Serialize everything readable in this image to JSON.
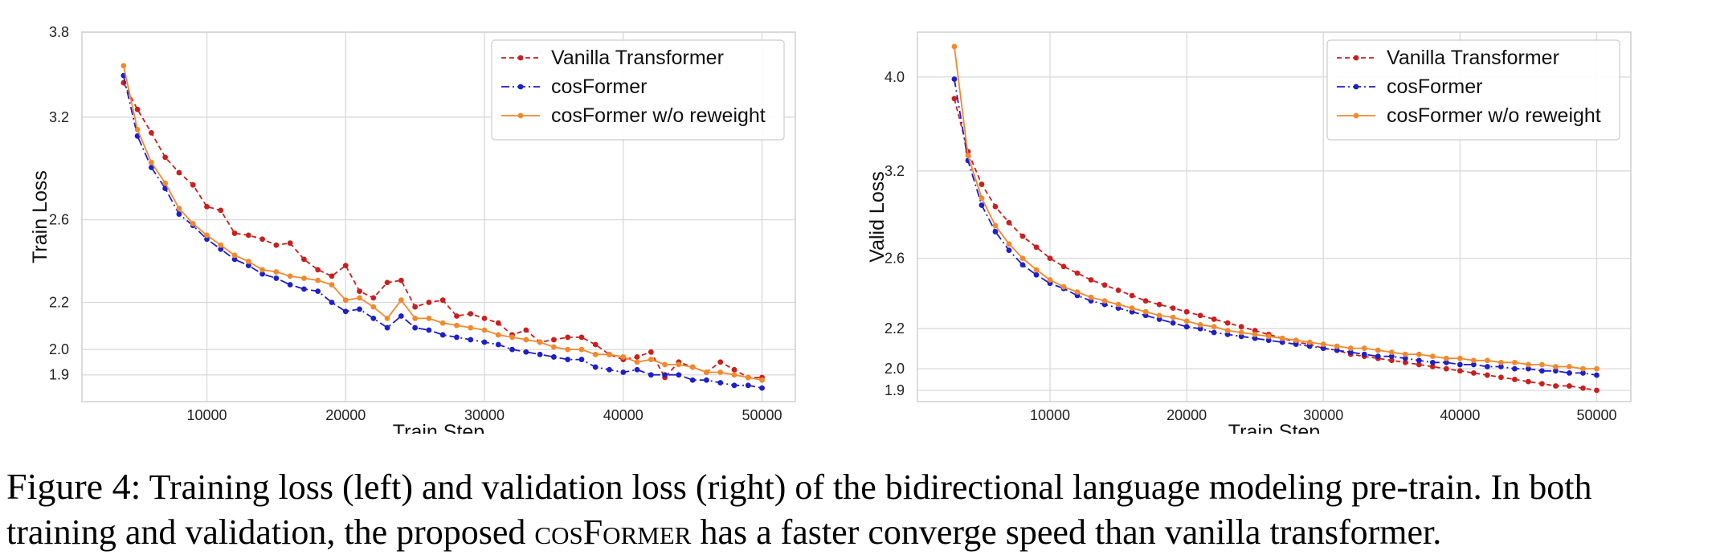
{
  "caption": {
    "label": "Figure 4:",
    "text_a": "Training loss (left) and validation loss (right) of the bidirectional language modeling pre-train. In both training and validation, the proposed ",
    "model": "cosFormer",
    "text_b": " has a faster converge speed than vanilla transformer."
  },
  "colors": {
    "vanilla": "#c8201f",
    "cosformer": "#1f1fc8",
    "reweight": "#f18a2e",
    "grid": "#d9d9d9"
  },
  "chart_data": [
    {
      "type": "line",
      "xlabel": "Train Step",
      "ylabel": "Train Loss",
      "xlim": [
        1000,
        52400
      ],
      "ylim": [
        1.8,
        3.8
      ],
      "y_scale": "log",
      "xticks": [
        10000,
        20000,
        30000,
        40000,
        50000
      ],
      "yticks": [
        1.9,
        2.0,
        2.2,
        2.6,
        3.2,
        3.8
      ],
      "grid": true,
      "legend_position": "top-right",
      "x": [
        4000,
        5000,
        6000,
        7000,
        8000,
        9000,
        10000,
        11000,
        12000,
        13000,
        14000,
        15000,
        16000,
        17000,
        18000,
        19000,
        20000,
        21000,
        22000,
        23000,
        24000,
        25000,
        26000,
        27000,
        28000,
        29000,
        30000,
        31000,
        32000,
        33000,
        34000,
        35000,
        36000,
        37000,
        38000,
        39000,
        40000,
        41000,
        42000,
        43000,
        44000,
        45000,
        46000,
        47000,
        48000,
        49000,
        50000
      ],
      "series": [
        {
          "name": "Vanilla Transformer",
          "color": "#c8201f",
          "style": "dashed",
          "values": [
            3.43,
            3.25,
            3.1,
            2.95,
            2.86,
            2.79,
            2.67,
            2.65,
            2.53,
            2.52,
            2.5,
            2.47,
            2.48,
            2.4,
            2.35,
            2.32,
            2.37,
            2.25,
            2.22,
            2.29,
            2.3,
            2.18,
            2.2,
            2.21,
            2.14,
            2.15,
            2.13,
            2.11,
            2.06,
            2.08,
            2.03,
            2.04,
            2.05,
            2.05,
            2.02,
            1.98,
            1.96,
            1.97,
            1.99,
            1.89,
            1.95,
            1.93,
            1.91,
            1.95,
            1.92,
            1.89,
            1.89
          ]
        },
        {
          "name": "cosFormer",
          "color": "#1f1fc8",
          "style": "dashdot",
          "values": [
            3.48,
            3.08,
            2.89,
            2.77,
            2.63,
            2.57,
            2.5,
            2.45,
            2.4,
            2.37,
            2.33,
            2.31,
            2.28,
            2.26,
            2.25,
            2.2,
            2.16,
            2.17,
            2.13,
            2.09,
            2.14,
            2.09,
            2.08,
            2.06,
            2.05,
            2.04,
            2.03,
            2.02,
            2.0,
            1.99,
            1.98,
            1.97,
            1.96,
            1.96,
            1.93,
            1.92,
            1.91,
            1.92,
            1.9,
            1.9,
            1.9,
            1.88,
            1.88,
            1.87,
            1.86,
            1.86,
            1.85
          ]
        },
        {
          "name": "cosFormer w/o reweight",
          "color": "#f18a2e",
          "style": "solid",
          "values": [
            3.55,
            3.12,
            2.92,
            2.8,
            2.66,
            2.58,
            2.52,
            2.47,
            2.42,
            2.39,
            2.35,
            2.34,
            2.32,
            2.31,
            2.3,
            2.28,
            2.21,
            2.22,
            2.18,
            2.13,
            2.21,
            2.13,
            2.13,
            2.11,
            2.1,
            2.09,
            2.08,
            2.06,
            2.05,
            2.04,
            2.03,
            2.01,
            2.0,
            2.0,
            1.98,
            1.98,
            1.97,
            1.95,
            1.96,
            1.94,
            1.94,
            1.93,
            1.91,
            1.91,
            1.9,
            1.89,
            1.88
          ]
        }
      ]
    },
    {
      "type": "line",
      "xlabel": "Train Step",
      "ylabel": "Valid Loss",
      "xlim": [
        300,
        52500
      ],
      "ylim": [
        1.85,
        4.45
      ],
      "y_scale": "log",
      "xticks": [
        10000,
        20000,
        30000,
        40000,
        50000
      ],
      "yticks": [
        1.9,
        2.0,
        2.2,
        2.6,
        3.2,
        4.0
      ],
      "grid": true,
      "legend_position": "top-right",
      "x": [
        3000,
        4000,
        5000,
        6000,
        7000,
        8000,
        9000,
        10000,
        11000,
        12000,
        13000,
        14000,
        15000,
        16000,
        17000,
        18000,
        19000,
        20000,
        21000,
        22000,
        23000,
        24000,
        25000,
        26000,
        27000,
        28000,
        29000,
        30000,
        31000,
        32000,
        33000,
        34000,
        35000,
        36000,
        37000,
        38000,
        39000,
        40000,
        41000,
        42000,
        43000,
        44000,
        45000,
        46000,
        47000,
        48000,
        49000,
        50000
      ],
      "series": [
        {
          "name": "Vanilla Transformer",
          "color": "#c8201f",
          "style": "dashed",
          "values": [
            3.8,
            3.35,
            3.1,
            2.94,
            2.83,
            2.74,
            2.67,
            2.6,
            2.55,
            2.51,
            2.47,
            2.44,
            2.41,
            2.38,
            2.35,
            2.33,
            2.31,
            2.29,
            2.27,
            2.25,
            2.23,
            2.21,
            2.19,
            2.17,
            2.15,
            2.13,
            2.12,
            2.1,
            2.09,
            2.07,
            2.06,
            2.05,
            2.04,
            2.03,
            2.02,
            2.01,
            2.0,
            1.99,
            1.98,
            1.97,
            1.96,
            1.95,
            1.94,
            1.93,
            1.92,
            1.92,
            1.91,
            1.9
          ]
        },
        {
          "name": "cosFormer",
          "color": "#1f1fc8",
          "style": "dashdot",
          "values": [
            3.98,
            3.28,
            2.95,
            2.77,
            2.65,
            2.56,
            2.5,
            2.45,
            2.42,
            2.38,
            2.35,
            2.33,
            2.31,
            2.29,
            2.27,
            2.25,
            2.23,
            2.21,
            2.2,
            2.18,
            2.17,
            2.16,
            2.15,
            2.14,
            2.13,
            2.12,
            2.11,
            2.1,
            2.09,
            2.08,
            2.07,
            2.06,
            2.06,
            2.05,
            2.04,
            2.03,
            2.03,
            2.02,
            2.02,
            2.01,
            2.01,
            2.0,
            2.0,
            1.99,
            1.99,
            1.98,
            1.98,
            1.97
          ]
        },
        {
          "name": "cosFormer w/o reweight",
          "color": "#f18a2e",
          "style": "solid",
          "values": [
            4.3,
            3.32,
            3.0,
            2.81,
            2.69,
            2.6,
            2.53,
            2.47,
            2.43,
            2.4,
            2.37,
            2.35,
            2.33,
            2.31,
            2.29,
            2.27,
            2.26,
            2.24,
            2.22,
            2.21,
            2.19,
            2.18,
            2.17,
            2.16,
            2.15,
            2.14,
            2.13,
            2.12,
            2.11,
            2.1,
            2.1,
            2.09,
            2.08,
            2.07,
            2.07,
            2.06,
            2.05,
            2.05,
            2.04,
            2.04,
            2.03,
            2.03,
            2.02,
            2.02,
            2.01,
            2.01,
            2.0,
            2.0
          ]
        }
      ]
    }
  ]
}
